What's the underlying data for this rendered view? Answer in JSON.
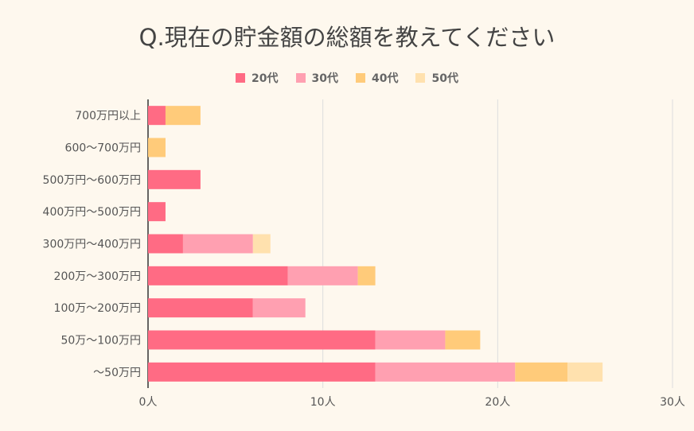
{
  "chart_data": {
    "type": "bar",
    "orientation": "horizontal",
    "stacked": true,
    "title": "Q.現在の貯金額の総額を教えてください",
    "categories": [
      "700万円以上",
      "600～700万円",
      "500万円～600万円",
      "400万円～500万円",
      "300万円～400万円",
      "200万～300万円",
      "100万～200万円",
      "50万～100万円",
      "～50万円"
    ],
    "series": [
      {
        "name": "20代",
        "color": "#ff6b84",
        "values": [
          1,
          0,
          3,
          1,
          2,
          8,
          6,
          13,
          13
        ]
      },
      {
        "name": "30代",
        "color": "#ffa0b1",
        "values": [
          0,
          0,
          0,
          0,
          4,
          4,
          3,
          4,
          8
        ]
      },
      {
        "name": "40代",
        "color": "#ffcb7a",
        "values": [
          2,
          1,
          0,
          0,
          0,
          1,
          0,
          2,
          3
        ]
      },
      {
        "name": "50代",
        "color": "#ffe1ae",
        "values": [
          0,
          0,
          0,
          0,
          1,
          0,
          0,
          0,
          2
        ]
      }
    ],
    "xticks": [
      "0人",
      "10人",
      "20人",
      "30人"
    ],
    "xlim": [
      0,
      30
    ],
    "legend": "top",
    "grid": true
  }
}
